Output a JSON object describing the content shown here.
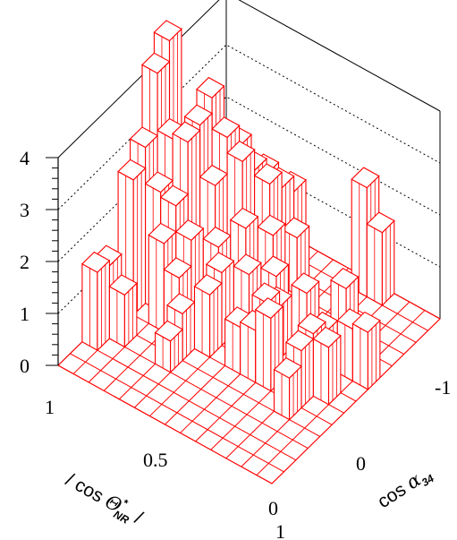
{
  "chart_data": {
    "type": "lego3d",
    "colors": {
      "bar_line": "#ff0000",
      "bar_face": "#ffffff",
      "frame": "#000000",
      "grid": "#000000"
    },
    "z_axis": {
      "range": [
        0,
        4
      ],
      "major_ticks": [
        0,
        1,
        2,
        3,
        4
      ],
      "tick_labels": [
        "0",
        "1",
        "2",
        "3",
        "4"
      ]
    },
    "x_axis": {
      "title_pre": "/ cos ",
      "title_greek": "Θ",
      "title_sub": "NR",
      "title_sup": "*",
      "title_post": " /",
      "range": [
        1,
        0
      ],
      "tick_labels": [
        "1",
        "0.5",
        "0"
      ]
    },
    "y_axis": {
      "title_pre": "cos ",
      "title_greek": "α",
      "title_sub": "34",
      "range": [
        1,
        -1
      ],
      "tick_labels": [
        "1",
        "0",
        "-1"
      ]
    },
    "grid": {
      "nx": 14,
      "ny": 14
    },
    "bars": [
      {
        "ix": 0,
        "iy": 2,
        "h": 1.5
      },
      {
        "ix": 0,
        "iy": 3,
        "h": 1.4
      },
      {
        "ix": 1,
        "iy": 3,
        "h": 1.0
      },
      {
        "ix": 0,
        "iy": 5,
        "h": 2.6
      },
      {
        "ix": 0,
        "iy": 6,
        "h": 3.0
      },
      {
        "ix": 1,
        "iy": 6,
        "h": 2.3
      },
      {
        "ix": 0,
        "iy": 7,
        "h": 4.2
      },
      {
        "ix": 0,
        "iy": 8,
        "h": 4.6
      },
      {
        "ix": 1,
        "iy": 7,
        "h": 3.1
      },
      {
        "ix": 1,
        "iy": 8,
        "h": 2.7
      },
      {
        "ix": 2,
        "iy": 5,
        "h": 1.7
      },
      {
        "ix": 2,
        "iy": 6,
        "h": 2.2
      },
      {
        "ix": 2,
        "iy": 7,
        "h": 3.2
      },
      {
        "ix": 2,
        "iy": 8,
        "h": 3.3
      },
      {
        "ix": 2,
        "iy": 9,
        "h": 3.6
      },
      {
        "ix": 3,
        "iy": 5,
        "h": 1.2
      },
      {
        "ix": 3,
        "iy": 6,
        "h": 1.7
      },
      {
        "ix": 3,
        "iy": 8,
        "h": 2.3
      },
      {
        "ix": 3,
        "iy": 9,
        "h": 3.0
      },
      {
        "ix": 3,
        "iy": 10,
        "h": 2.6
      },
      {
        "ix": 4,
        "iy": 3,
        "h": 0.6
      },
      {
        "ix": 4,
        "iy": 4,
        "h": 0.9
      },
      {
        "ix": 4,
        "iy": 7,
        "h": 1.5
      },
      {
        "ix": 4,
        "iy": 9,
        "h": 2.7
      },
      {
        "ix": 4,
        "iy": 10,
        "h": 2.3
      },
      {
        "ix": 4,
        "iy": 11,
        "h": 2.0
      },
      {
        "ix": 5,
        "iy": 5,
        "h": 1.2
      },
      {
        "ix": 5,
        "iy": 6,
        "h": 1.4
      },
      {
        "ix": 5,
        "iy": 8,
        "h": 1.8
      },
      {
        "ix": 5,
        "iy": 10,
        "h": 2.2
      },
      {
        "ix": 5,
        "iy": 11,
        "h": 1.9
      },
      {
        "ix": 5,
        "iy": 12,
        "h": 1.6
      },
      {
        "ix": 6,
        "iy": 7,
        "h": 1.3
      },
      {
        "ix": 6,
        "iy": 9,
        "h": 1.6
      },
      {
        "ix": 6,
        "iy": 11,
        "h": 1.1
      },
      {
        "ix": 7,
        "iy": 5,
        "h": 0.9
      },
      {
        "ix": 7,
        "iy": 8,
        "h": 1.2
      },
      {
        "ix": 8,
        "iy": 5,
        "h": 1.0
      },
      {
        "ix": 8,
        "iy": 6,
        "h": 1.3
      },
      {
        "ix": 8,
        "iy": 7,
        "h": 1.0
      },
      {
        "ix": 9,
        "iy": 5,
        "h": 1.4
      },
      {
        "ix": 9,
        "iy": 8,
        "h": 1.2
      },
      {
        "ix": 9,
        "iy": 13,
        "h": 2.1
      },
      {
        "ix": 10,
        "iy": 10,
        "h": 1.0
      },
      {
        "ix": 10,
        "iy": 13,
        "h": 1.4
      },
      {
        "ix": 11,
        "iy": 4,
        "h": 0.8
      },
      {
        "ix": 11,
        "iy": 5,
        "h": 1.1
      },
      {
        "ix": 11,
        "iy": 6,
        "h": 1.2
      },
      {
        "ix": 11,
        "iy": 7,
        "h": 1.0
      },
      {
        "ix": 12,
        "iy": 6,
        "h": 1.1
      },
      {
        "ix": 12,
        "iy": 8,
        "h": 1.0
      },
      {
        "ix": 13,
        "iy": 8,
        "h": 1.1
      }
    ]
  }
}
